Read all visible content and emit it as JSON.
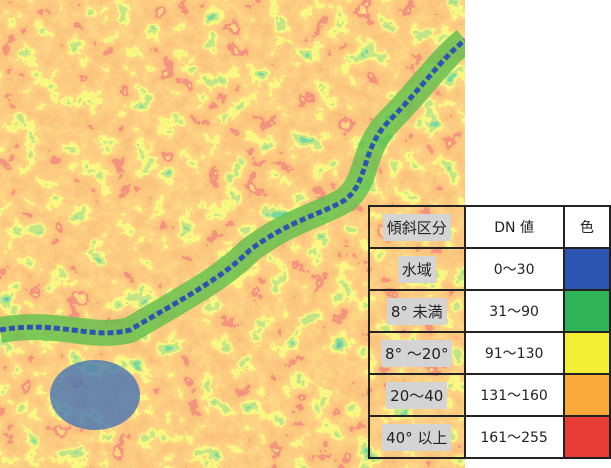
{
  "table": {
    "header": [
      "傾斜区分",
      "DN 値",
      "色"
    ],
    "rows": [
      {
        "label": "水域",
        "dn": "0～30",
        "color": "#2b55b0"
      },
      {
        "label": "8° 未満",
        "dn": "31～90",
        "color": "#2eb356"
      },
      {
        "label": "8° ～20°",
        "dn": "91～130",
        "color": "#f2ee34"
      },
      {
        "label": "20～40",
        "dn": "131～160",
        "color": "#f9a93a"
      },
      {
        "label": "40° 以上",
        "dn": "161～255",
        "color": "#e83b36"
      }
    ]
  }
}
